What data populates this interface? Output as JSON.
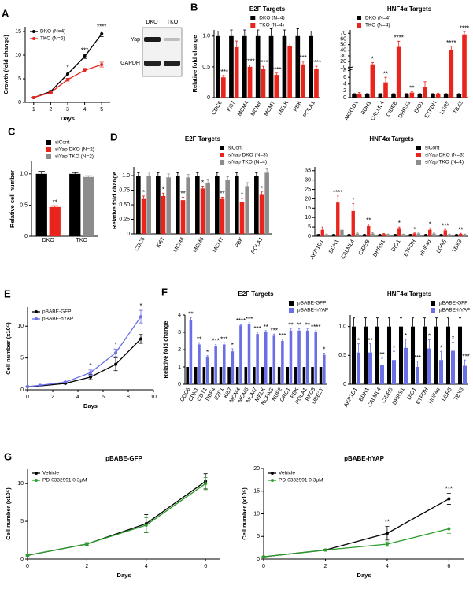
{
  "blot": {
    "lanes": [
      "DKO",
      "TKO"
    ],
    "rows": [
      "Yap",
      "GAPDH"
    ]
  },
  "chart_data": [
    {
      "panel": "A",
      "type": "line",
      "xlabel": "Days",
      "ylabel": "Growth (fold change)",
      "x": [
        1,
        2,
        3,
        4,
        5
      ],
      "xlim": [
        0.5,
        5.5
      ],
      "xticks": [
        1,
        2,
        3,
        4,
        5
      ],
      "ylim": [
        0,
        16
      ],
      "yticks": [
        0,
        5,
        10,
        15
      ],
      "legend": "upper left",
      "series": [
        {
          "name": "DKO (N=4)",
          "color": "#000000",
          "values": [
            1,
            2.3,
            6,
            9.7,
            14.5
          ],
          "errors": [
            0.1,
            0.2,
            0.4,
            0.4,
            0.6
          ],
          "annotations": [
            null,
            null,
            "*",
            "***",
            "****"
          ]
        },
        {
          "name": "TKO (N=5)",
          "color": "#e8241c",
          "values": [
            1,
            2.1,
            4.8,
            6.8,
            8
          ],
          "errors": [
            0.1,
            0.2,
            0.3,
            0.4,
            0.5
          ]
        }
      ]
    },
    {
      "panel": "B",
      "type": "bar",
      "title": "E2F Targets",
      "ylabel": "Relative fold change",
      "categories": [
        "CDC6",
        "Ki67",
        "MCM4",
        "MCM6",
        "MCM7",
        "MELK",
        "PBK",
        "POLA1"
      ],
      "ylim": [
        0,
        1.1
      ],
      "yticks": [
        0,
        0.5,
        {
          "value": 1,
          "label": "1.0"
        }
      ],
      "legend": "upper center",
      "series": [
        {
          "name": "DKO (N=4)",
          "color": "#000000",
          "values": [
            1,
            1,
            1,
            1,
            1,
            1,
            1,
            1
          ],
          "errors": [
            0.08,
            0.1,
            0.1,
            0.1,
            0.12,
            0.1,
            0.12,
            0.08
          ]
        },
        {
          "name": "TKO (N=4)",
          "color": "#e8241c",
          "values": [
            0.33,
            0.82,
            0.5,
            0.47,
            0.37,
            0.84,
            0.54,
            0.47
          ],
          "errors": [
            0.03,
            0.1,
            0.03,
            0.04,
            0.03,
            0.05,
            0.05,
            0.04
          ],
          "annotations": [
            "****",
            null,
            "****",
            "****",
            "****",
            null,
            "***",
            "****"
          ]
        }
      ]
    },
    {
      "type": "bar",
      "title": "HNF4α Targets",
      "categories": [
        "AKR1D1",
        "BDH1",
        "CALML4",
        "CIDEB",
        "DHRS1",
        "DIO1",
        "ETFDH",
        "LGR5",
        "TBX3"
      ],
      "ylim": [
        0,
        76
      ],
      "ybreak": [
        8,
        10
      ],
      "yticks": [
        0,
        2,
        4,
        6,
        8,
        10,
        20,
        30,
        40,
        50,
        60,
        70
      ],
      "legend": "upper left",
      "series": [
        {
          "name": "DKO (N=4)",
          "color": "#000000",
          "values": [
            1,
            1,
            1,
            1,
            1,
            1,
            1,
            1,
            1
          ],
          "errors": [
            0.2,
            0.2,
            0.2,
            0.2,
            0.2,
            0.2,
            0.2,
            0.2,
            0.2
          ]
        },
        {
          "name": "TKO (N=4)",
          "color": "#e8241c",
          "values": [
            1.2,
            15,
            4.5,
            46,
            1.5,
            3.2,
            1,
            40,
            68
          ],
          "errors": [
            0.3,
            3,
            1.5,
            10,
            0.3,
            1.5,
            0.3,
            7,
            5
          ],
          "annotations": [
            null,
            "*",
            "**",
            "****",
            "**",
            null,
            null,
            "****",
            "****"
          ]
        }
      ]
    },
    {
      "panel": "C",
      "type": "bar",
      "ylabel": "Relative cell number",
      "categories": [
        "DKO",
        "TKO"
      ],
      "ylim": [
        0,
        1.2
      ],
      "yticks": [
        0,
        0.5,
        {
          "value": 1,
          "label": "1.0"
        }
      ],
      "legend": "upper right",
      "series": [
        {
          "name": "siCont",
          "color": "#000000",
          "values": [
            1,
            1
          ],
          "errors": [
            0.04,
            0.02
          ]
        },
        {
          "name": "siYap DKO (N=2)",
          "color": "#e8241c",
          "values": [
            0.47,
            null
          ],
          "errors": [
            0.02,
            null
          ],
          "annotations": [
            "**",
            null
          ]
        },
        {
          "name": "siYap TKO (N=2)",
          "color": "#8c8c8c",
          "values": [
            null,
            0.95
          ],
          "errors": [
            null,
            0.02
          ]
        }
      ]
    },
    {
      "panel": "D",
      "type": "bar",
      "title": "E2F Targets",
      "ylabel": "Relative fold change",
      "categories": [
        "CDC6",
        "Ki67",
        "MCM4",
        "MCM6",
        "MCM7",
        "PBK",
        "POLA1"
      ],
      "ylim": [
        0,
        1.15
      ],
      "yticks": [
        0,
        0.25,
        {
          "value": 0.5,
          "label": "0.50"
        },
        0.75,
        {
          "value": 1,
          "label": "1.0"
        }
      ],
      "legend": "upper right",
      "series": [
        {
          "name": "siCont",
          "color": "#000000",
          "values": [
            1,
            1,
            1,
            1,
            1,
            1,
            1
          ],
          "errors": [
            0.05,
            0.05,
            0.05,
            0.05,
            0.05,
            0.05,
            0.05
          ]
        },
        {
          "name": "siYap DKO (N=3)",
          "color": "#e8241c",
          "values": [
            0.6,
            0.65,
            0.58,
            0.78,
            0.6,
            0.55,
            0.67
          ],
          "errors": [
            0.05,
            0.05,
            0.05,
            0.04,
            0.03,
            0.06,
            0.05
          ],
          "annotations": [
            "*",
            "*",
            "**",
            "*",
            "**",
            "*",
            "*"
          ]
        },
        {
          "name": "siYap TKO (N=4)",
          "color": "#8c8c8c",
          "values": [
            1,
            0.97,
            0.97,
            0.88,
            0.93,
            0.82,
            1.05
          ],
          "errors": [
            0.06,
            0.06,
            0.05,
            0.06,
            0.05,
            0.06,
            0.08
          ]
        }
      ]
    },
    {
      "type": "bar",
      "title": "HNF4α Targets",
      "categories": [
        "AKR1D1",
        "BDH1",
        "CALML4",
        "CIDEB",
        "DHRS1",
        "DIO1",
        "ETFDH",
        "HNF4α",
        "LGR5",
        "TBX3"
      ],
      "ylim": [
        0,
        37
      ],
      "yticks": [
        0,
        5,
        10,
        15,
        20,
        25,
        30,
        35
      ],
      "legend": "upper right",
      "series": [
        {
          "name": "siCont",
          "color": "#000000",
          "values": [
            1,
            1,
            1,
            1,
            1,
            1,
            1,
            1,
            1,
            1
          ],
          "errors": [
            0.1,
            0.1,
            0.1,
            0.1,
            0.1,
            0.1,
            0.1,
            0.1,
            0.1,
            0.1
          ]
        },
        {
          "name": "siYap DKO (N=3)",
          "color": "#e8241c",
          "values": [
            3.5,
            18,
            13.5,
            5.5,
            1.2,
            4,
            1.5,
            3.5,
            3.2,
            1.3
          ],
          "errors": [
            1.5,
            3.5,
            4,
            1,
            0.3,
            1,
            0.3,
            1,
            0.5,
            0.3
          ],
          "annotations": [
            null,
            "****",
            "*",
            "**",
            null,
            "*",
            "*",
            "*",
            "***",
            "**"
          ]
        },
        {
          "name": "siYap TKO (N=4)",
          "color": "#8c8c8c",
          "values": [
            1,
            3.5,
            1.5,
            1.5,
            1,
            1,
            1.5,
            1.5,
            1,
            1
          ],
          "errors": [
            0.2,
            1,
            0.5,
            0.5,
            0.2,
            0.2,
            0.3,
            0.5,
            0.2,
            0.2
          ]
        }
      ]
    },
    {
      "panel": "E",
      "type": "line",
      "xlabel": "Days",
      "ylabel": "Cell number (x10⁵)",
      "x": [
        0,
        1,
        3,
        5,
        7,
        9
      ],
      "xlim": [
        0,
        10
      ],
      "xticks": [
        0,
        2,
        4,
        6,
        8,
        10
      ],
      "ylim": [
        0,
        13
      ],
      "yticks": [
        0,
        5,
        10
      ],
      "legend": "upper left",
      "series": [
        {
          "name": "pBABE-GFP",
          "color": "#000000",
          "values": [
            0.5,
            0.6,
            1,
            2,
            4,
            8
          ],
          "errors": [
            0.05,
            0.05,
            0.1,
            0.4,
            1,
            0.7
          ]
        },
        {
          "name": "pBABE-hYAP",
          "color": "#6a6fe6",
          "values": [
            0.5,
            0.7,
            1.2,
            2.7,
            5.8,
            11.5
          ],
          "errors": [
            0.05,
            0.05,
            0.1,
            0.4,
            0.6,
            1
          ],
          "annotations": [
            null,
            null,
            null,
            "*",
            "*",
            "*"
          ]
        }
      ]
    },
    {
      "panel": "F",
      "type": "bar",
      "title": "E2F Targets",
      "ylabel": "Relative fold change",
      "categories": [
        "CDC6",
        "CDK1",
        "CDT1",
        "DBF4",
        "E2F1",
        "Ki67",
        "MCM4",
        "MCM6",
        "MCM7",
        "MELK",
        "NCPAG",
        "NUF2",
        "ORC1",
        "PBK",
        "POLA1",
        "RFC3",
        "UBE2T"
      ],
      "ylim": [
        0,
        4
      ],
      "yticks": [
        0,
        1,
        2,
        3,
        4
      ],
      "legend": "upper right",
      "series": [
        {
          "name": "pBABE-GFP",
          "color": "#000000",
          "values": [
            1,
            1,
            1,
            1,
            1,
            1,
            1,
            1,
            1,
            1,
            1,
            1,
            1,
            1,
            1,
            1,
            1
          ]
        },
        {
          "name": "pBABE-hYAP",
          "color": "#6a6fe6",
          "values": [
            3.7,
            2.3,
            1.6,
            2.2,
            2.3,
            1.9,
            3.4,
            3.45,
            2.9,
            3,
            2.8,
            2.5,
            3.1,
            3.1,
            3.1,
            3,
            1.7
          ],
          "errors": [
            0.15,
            0.1,
            0.05,
            0.1,
            0.1,
            0.15,
            0.05,
            0.1,
            0.1,
            0.1,
            0.1,
            0.1,
            0.1,
            0.1,
            0.1,
            0.1,
            0.1
          ],
          "annotations": [
            "**",
            "**",
            "*",
            "***",
            "***",
            "*",
            "****",
            "***",
            "***",
            "**",
            "***",
            "***",
            "**",
            "**",
            "**",
            "****",
            "*"
          ]
        }
      ]
    },
    {
      "type": "bar",
      "title": "HNF4α Targets",
      "categories": [
        "AKR1D1",
        "BDH1",
        "CALML4",
        "CIDEB",
        "DHRS1",
        "DIO1",
        "ETFDH",
        "HNF4α",
        "LGR5",
        "TBX3"
      ],
      "ylim": [
        0,
        1.2
      ],
      "yticks": [
        0,
        0.5,
        {
          "value": 1,
          "label": "1.0"
        }
      ],
      "legend": "upper right",
      "series": [
        {
          "name": "pBABE-GFP",
          "color": "#000000",
          "values": [
            1,
            1,
            1,
            1,
            1,
            1,
            1,
            1,
            1,
            1
          ],
          "errors": [
            0.15,
            0.15,
            0.15,
            0.15,
            0.15,
            0.15,
            0.15,
            0.15,
            0.15,
            0.15
          ]
        },
        {
          "name": "pBABE-hYAP",
          "color": "#6a6fe6",
          "values": [
            0.55,
            0.55,
            0.33,
            0.42,
            0.63,
            0.3,
            0.62,
            0.42,
            0.58,
            0.32
          ],
          "errors": [
            0.15,
            0.15,
            0.12,
            0.15,
            0.15,
            0.1,
            0.15,
            0.15,
            0.15,
            0.1
          ],
          "annotations": [
            "*",
            "**",
            "**",
            "*",
            "*",
            "***",
            "*",
            "*",
            "*",
            "****"
          ]
        }
      ]
    },
    {
      "panel": "G",
      "type": "line",
      "title": "pBABE-GFP",
      "xlabel": "Days",
      "ylabel": "Cell number (x10⁵)",
      "x": [
        0,
        2,
        4,
        6
      ],
      "xlim": [
        0,
        6.5
      ],
      "xticks": [
        0,
        2,
        4,
        6
      ],
      "ylim": [
        0,
        12
      ],
      "yticks": [
        0,
        5,
        10
      ],
      "legend": "upper left",
      "series": [
        {
          "name": "Vehicle",
          "color": "#000000",
          "values": [
            0.5,
            2,
            4.7,
            10.3
          ],
          "errors": [
            0.1,
            0.2,
            1.2,
            1
          ]
        },
        {
          "name": "PD-0332991 0.3μM",
          "color": "#2a9d2a",
          "values": [
            0.5,
            2,
            4.5,
            10
          ],
          "errors": [
            0.1,
            0.2,
            1,
            0.8
          ]
        }
      ]
    },
    {
      "type": "line",
      "title": "pBABE-hYAP",
      "xlabel": "Days",
      "ylabel": "Cell number (x10⁵)",
      "x": [
        0,
        2,
        4,
        6
      ],
      "xlim": [
        0,
        6.5
      ],
      "xticks": [
        0,
        2,
        4,
        6
      ],
      "ylim": [
        0,
        20
      ],
      "yticks": [
        0,
        5,
        10,
        15,
        20
      ],
      "legend": "upper left",
      "series": [
        {
          "name": "Vehicle",
          "color": "#000000",
          "values": [
            0.5,
            2,
            5.7,
            13.3
          ],
          "errors": [
            0.1,
            0.2,
            1.5,
            1.2
          ],
          "annotations": [
            null,
            null,
            "**",
            "***"
          ]
        },
        {
          "name": "PD-0332991 0.3μM",
          "color": "#2a9d2a",
          "values": [
            0.5,
            2,
            3.3,
            6.7
          ],
          "errors": [
            0.1,
            0.2,
            0.5,
            1
          ]
        }
      ]
    }
  ]
}
